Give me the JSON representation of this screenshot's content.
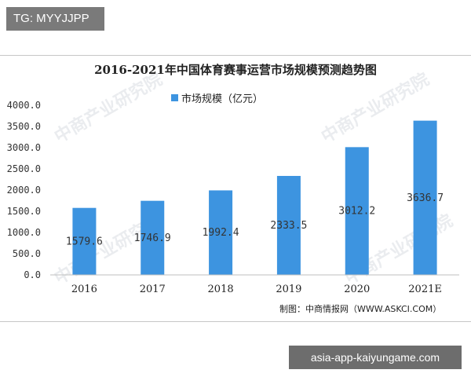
{
  "tag_label": "TG: MYYJJPP",
  "site_label": "asia-app-kaiyungame.com",
  "watermark_text": "中商产业研究院",
  "source_text": "制图：中商情报网（WWW.ASKCI.COM）",
  "bar_color": "#3d94e0",
  "chart_data": {
    "type": "bar",
    "title": "2016-2021年中国体育赛事运营市场规模预测趋势图",
    "xlabel": "",
    "ylabel": "",
    "categories": [
      "2016",
      "2017",
      "2018",
      "2019",
      "2020",
      "2021E"
    ],
    "series": [
      {
        "name": "市场规模（亿元）",
        "values": [
          1579.6,
          1746.9,
          1992.4,
          2333.5,
          3012.2,
          3636.7
        ]
      }
    ],
    "data_labels": [
      "1579.6",
      "1746.9",
      "1992.4",
      "2333.5",
      "3012.2",
      "3636.7"
    ],
    "yticks": [
      "0.0",
      "500.0",
      "1000.0",
      "1500.0",
      "2000.0",
      "2500.0",
      "3000.0",
      "3500.0",
      "4000.0"
    ],
    "ylim": [
      0,
      4000
    ],
    "legend_position": "top",
    "grid": false
  }
}
